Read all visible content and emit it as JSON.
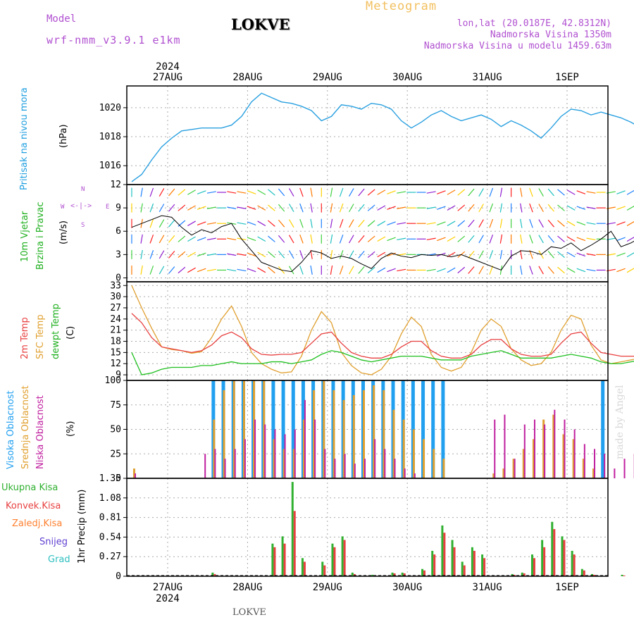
{
  "header": {
    "model_label": "Model",
    "model_name": "wrf-nmm_v3.9.1 e1km",
    "station": "LOKVE",
    "product": "Meteogram",
    "coords": "lon,lat (20.0187E, 42.8312N)",
    "elevation": "Nadmorska Visina 1350m",
    "model_elevation": "Nadmorska Visina u modelu 1459.63m"
  },
  "footer": {
    "station": "LOKVE",
    "watermark": "made by Angel"
  },
  "time_axis": {
    "year": "2024",
    "dates": [
      "27AUG",
      "28AUG",
      "29AUG",
      "30AUG",
      "31AUG",
      "1SEP"
    ],
    "start_day_fraction": 0.55,
    "end_day_fraction": 6.6,
    "step_hours": 3
  },
  "colors": {
    "pressure": "#2aa0e0",
    "t2m": "#e84040",
    "tsfc": "#e0a030",
    "dewpoint": "#20c020",
    "wind_speed": "#000000",
    "high_cloud": "#22a0f0",
    "mid_cloud": "#e0a030",
    "low_cloud": "#c0209f",
    "total_precip": "#30b030",
    "conv_precip": "#e84040",
    "frozen_precip": "#ff8030",
    "snow": "#6040d0",
    "graupel": "#30c0c0"
  },
  "chart_data": [
    {
      "panel": "pressure",
      "type": "line",
      "ylabel": [
        "Pritisak na nivou mora",
        "(hPa)"
      ],
      "yticks": [
        1016,
        1018,
        1020
      ],
      "ylim": [
        1014.7,
        1021.5
      ],
      "series": [
        {
          "name": "Pritisak na nivou mora",
          "values": [
            1014.9,
            1015.4,
            1016.4,
            1017.3,
            1017.9,
            1018.4,
            1018.5,
            1018.6,
            1018.6,
            1018.6,
            1018.8,
            1019.4,
            1020.4,
            1021.0,
            1020.7,
            1020.4,
            1020.3,
            1020.1,
            1019.8,
            1019.1,
            1019.4,
            1020.2,
            1020.1,
            1019.9,
            1020.3,
            1020.2,
            1019.9,
            1019.1,
            1018.6,
            1019.0,
            1019.5,
            1019.8,
            1019.4,
            1019.1,
            1019.3,
            1019.5,
            1019.2,
            1018.7,
            1019.1,
            1018.8,
            1018.4,
            1017.9,
            1018.6,
            1019.4,
            1019.9,
            1019.8,
            1019.5,
            1019.7,
            1019.5,
            1019.3,
            1019.0,
            1018.6,
            1018.8,
            1020.0,
            1020.7,
            1020.6,
            1020.0,
            1019.9,
            1019.7,
            1019.3,
            1018.8,
            1018.5
          ]
        }
      ]
    },
    {
      "panel": "wind",
      "type": "line",
      "ylabel": [
        "10m Vjetar",
        "Brzina i Pravac",
        "(m/s)"
      ],
      "compass": {
        "north": "N",
        "west": "W",
        "east": "E",
        "south": "S"
      },
      "yticks": [
        0,
        3,
        6,
        9,
        12
      ],
      "ylim": [
        -0.5,
        12
      ],
      "series": [
        {
          "name": "10m Vjetar Brzina",
          "values": [
            6.5,
            7.0,
            7.5,
            8.0,
            7.8,
            6.5,
            5.5,
            6.2,
            5.8,
            6.6,
            7.0,
            5.0,
            3.5,
            2.0,
            1.5,
            1.0,
            0.8,
            2.0,
            3.5,
            3.2,
            2.5,
            2.8,
            2.5,
            1.8,
            1.2,
            2.5,
            3.2,
            2.8,
            2.6,
            3.0,
            2.9,
            3.0,
            2.7,
            3.0,
            2.5,
            2.0,
            1.5,
            1.0,
            2.8,
            3.5,
            3.4,
            3.0,
            4.0,
            3.8,
            4.5,
            3.5,
            4.2,
            5.0,
            6.0,
            4.0,
            4.5,
            5.2,
            6.0,
            6.8,
            7.5,
            5.5,
            4.0,
            2.5,
            2.2,
            3.0,
            4.5,
            5.5
          ]
        }
      ],
      "wind_dir_deg": [
        180,
        190,
        200,
        210,
        220,
        230,
        240,
        250,
        260,
        270,
        280,
        280,
        290,
        300,
        310,
        320,
        330,
        340,
        350,
        0,
        10,
        20,
        30,
        40,
        50,
        60,
        70,
        80,
        90,
        90,
        80,
        70,
        60,
        50,
        40,
        30,
        20,
        10,
        0,
        350,
        340,
        330,
        320,
        310,
        300,
        290,
        280,
        270,
        260,
        250,
        240,
        230,
        220,
        210,
        200,
        190,
        180,
        170,
        160,
        150,
        140,
        130
      ]
    },
    {
      "panel": "temperature",
      "type": "line",
      "ylabel": [
        "2m Temp",
        "SFC Temp",
        "dewpt Temp",
        "(C)"
      ],
      "yticks": [
        9,
        12,
        15,
        18,
        21,
        24,
        27,
        30,
        33
      ],
      "ylim": [
        7.5,
        34
      ],
      "series": [
        {
          "name": "SFC Temp",
          "values": [
            33.0,
            27.0,
            21.5,
            16.5,
            15.8,
            15.5,
            14.8,
            15.2,
            19.0,
            24.0,
            27.5,
            22.0,
            15.0,
            12.0,
            10.5,
            9.5,
            9.8,
            14.0,
            21.0,
            26.0,
            23.0,
            15.0,
            11.5,
            9.5,
            9.0,
            10.5,
            14.0,
            20.0,
            24.5,
            22.0,
            14.5,
            11.0,
            10.0,
            11.0,
            15.0,
            21.0,
            24.0,
            22.0,
            16.0,
            13.0,
            11.5,
            12.0,
            15.0,
            21.0,
            25.0,
            24.0,
            17.0,
            13.0,
            12.0,
            12.5,
            13.0,
            13.5,
            14.0,
            13.5,
            13.0,
            13.0,
            13.0,
            13.5,
            18.0,
            24.0,
            27.5,
            26.5
          ]
        },
        {
          "name": "2m Temp",
          "values": [
            25.5,
            23.0,
            19.0,
            16.5,
            16.0,
            15.5,
            15.0,
            15.5,
            17.0,
            19.5,
            20.5,
            19.0,
            16.0,
            14.5,
            14.3,
            14.5,
            14.5,
            15.0,
            17.5,
            20.0,
            20.5,
            17.5,
            15.0,
            14.0,
            13.5,
            13.5,
            14.5,
            16.5,
            18.0,
            18.0,
            15.5,
            14.0,
            13.5,
            13.5,
            14.5,
            17.0,
            18.5,
            18.5,
            16.0,
            14.5,
            14.0,
            14.0,
            14.5,
            17.5,
            20.0,
            20.5,
            17.5,
            15.0,
            14.5,
            14.0,
            14.0,
            14.0,
            14.0,
            14.0,
            14.0,
            14.0,
            14.0,
            14.0,
            16.0,
            19.0,
            21.5,
            21.0
          ]
        },
        {
          "name": "dewpt Temp",
          "values": [
            15.0,
            9.0,
            9.5,
            10.5,
            11.0,
            11.0,
            11.0,
            11.5,
            11.5,
            12.0,
            12.5,
            12.0,
            12.0,
            12.0,
            12.5,
            12.5,
            12.0,
            12.5,
            13.0,
            14.5,
            15.5,
            15.0,
            14.0,
            13.0,
            12.5,
            13.0,
            13.5,
            14.0,
            14.0,
            14.0,
            13.5,
            13.0,
            13.0,
            13.0,
            14.0,
            14.5,
            15.0,
            15.5,
            14.5,
            13.5,
            13.5,
            13.5,
            13.5,
            14.0,
            14.5,
            14.0,
            13.5,
            12.5,
            12.0,
            12.0,
            12.5,
            13.0,
            13.5,
            13.0,
            12.5,
            12.0,
            12.0,
            12.0,
            13.0,
            14.0,
            13.5,
            14.0
          ]
        }
      ]
    },
    {
      "panel": "clouds",
      "type": "bar",
      "ylabel": [
        "Visoka Oblacnost",
        "Srednja Oblacnost",
        "Niska Oblacnost",
        "(%)"
      ],
      "yticks": [
        0,
        25,
        50,
        75,
        100
      ],
      "ylim": [
        0,
        100
      ],
      "series": [
        {
          "name": "Visoka Oblacnost",
          "values": [
            0,
            0,
            0,
            0,
            0,
            0,
            0,
            0,
            100,
            100,
            100,
            100,
            100,
            100,
            100,
            100,
            100,
            100,
            100,
            100,
            100,
            100,
            100,
            100,
            100,
            100,
            100,
            100,
            100,
            100,
            100,
            100,
            0,
            0,
            0,
            0,
            0,
            0,
            0,
            0,
            0,
            0,
            0,
            0,
            0,
            0,
            0,
            100,
            0,
            0,
            0,
            0,
            0,
            0,
            0,
            0,
            0,
            0,
            0,
            0,
            0,
            30
          ]
        },
        {
          "name": "Srednja Oblacnost",
          "values": [
            10,
            0,
            0,
            0,
            0,
            0,
            0,
            0,
            60,
            90,
            100,
            100,
            100,
            100,
            40,
            30,
            30,
            60,
            90,
            100,
            90,
            80,
            85,
            90,
            95,
            90,
            70,
            60,
            50,
            40,
            30,
            20,
            0,
            0,
            0,
            0,
            5,
            10,
            20,
            30,
            40,
            60,
            65,
            45,
            40,
            20,
            10,
            0,
            0,
            0,
            0,
            0,
            0,
            0,
            0,
            0,
            0,
            0,
            0,
            0,
            0,
            0
          ]
        },
        {
          "name": "Niska Oblacnost",
          "values": [
            5,
            0,
            0,
            0,
            0,
            0,
            0,
            25,
            30,
            20,
            30,
            40,
            60,
            55,
            50,
            45,
            50,
            80,
            60,
            30,
            20,
            25,
            15,
            20,
            40,
            30,
            20,
            10,
            5,
            0,
            0,
            0,
            0,
            0,
            0,
            0,
            60,
            65,
            20,
            55,
            60,
            55,
            70,
            60,
            50,
            35,
            30,
            25,
            10,
            20,
            25,
            15,
            10,
            5,
            80,
            60,
            25,
            10,
            5,
            0,
            0,
            25
          ]
        }
      ]
    },
    {
      "panel": "precipitation",
      "type": "bar",
      "ylabel": [
        "1hr Precip (mm)"
      ],
      "legend": [
        "Ukupna Kisa",
        "Konvek.Kisa",
        "Zaledj.Kisa",
        "Snijeg",
        "Grad"
      ],
      "yticks": [
        0,
        0.27,
        0.54,
        0.81,
        1.08,
        1.35
      ],
      "ylim": [
        0,
        1.35
      ],
      "series": [
        {
          "name": "Ukupna Kisa",
          "values": [
            0,
            0,
            0,
            0,
            0,
            0,
            0,
            0,
            0.05,
            0,
            0,
            0,
            0,
            0,
            0.45,
            0.55,
            1.3,
            0.25,
            0,
            0.2,
            0.45,
            0.55,
            0.05,
            0,
            0.02,
            0,
            0.05,
            0.05,
            0,
            0.1,
            0.35,
            0.7,
            0.5,
            0.2,
            0.4,
            0.3,
            0,
            0,
            0.03,
            0.05,
            0.3,
            0.5,
            0.75,
            0.55,
            0.35,
            0.1,
            0.03,
            0,
            0,
            0.02,
            0,
            0,
            0,
            0,
            0,
            0,
            0,
            0,
            0,
            0,
            0,
            0.08
          ]
        },
        {
          "name": "Konvek.Kisa",
          "values": [
            0,
            0,
            0,
            0,
            0,
            0,
            0,
            0,
            0.03,
            0,
            0,
            0,
            0,
            0,
            0.4,
            0.45,
            0.9,
            0.2,
            0,
            0.15,
            0.4,
            0.5,
            0.03,
            0,
            0.01,
            0,
            0.04,
            0.04,
            0,
            0.08,
            0.3,
            0.6,
            0.4,
            0.15,
            0.35,
            0.25,
            0,
            0,
            0.02,
            0.04,
            0.25,
            0.4,
            0.65,
            0.5,
            0.3,
            0.08,
            0.02,
            0,
            0,
            0.01,
            0,
            0,
            0,
            0,
            0,
            0,
            0,
            0,
            0,
            0,
            0,
            0.06
          ]
        }
      ]
    }
  ]
}
